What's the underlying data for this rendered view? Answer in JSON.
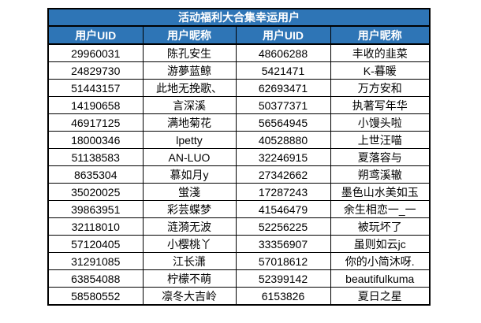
{
  "title": "活动福利大合集幸运用户",
  "colors": {
    "header_bg": "#2E75B6",
    "header_text": "#FFFFFF",
    "body_text": "#000000",
    "border": "#000000",
    "page_bg": "#FFFFFF"
  },
  "table": {
    "headers": [
      "用户UID",
      "用户昵称",
      "用户UID",
      "用户昵称"
    ],
    "rows": [
      [
        "29960031",
        "陈孔安生",
        "48606288",
        "丰收的韭菜"
      ],
      [
        "24829730",
        "游夢蓝鲸",
        "5421471",
        "K-暮暖"
      ],
      [
        "51443157",
        "此地无挽歌、",
        "62693471",
        "万方安和"
      ],
      [
        "14190658",
        "言深溪",
        "50377371",
        "执著写年华"
      ],
      [
        "46917125",
        "满地菊花",
        "56564945",
        "小馒头啦"
      ],
      [
        "18000346",
        "lpetty",
        "40528880",
        "上世汪喵"
      ],
      [
        "51138583",
        "AN-LUO",
        "32246915",
        "夏落容与"
      ],
      [
        "8635304",
        "慕如月y",
        "27342662",
        "朔鸢溪辙"
      ],
      [
        "35020025",
        "蛍淺",
        "17287243",
        "墨色山水美如玉"
      ],
      [
        "39863951",
        "彩芸蝶梦",
        "41546479",
        "余生相恋一_一"
      ],
      [
        "32118010",
        "涟漪无波",
        "52256225",
        "被玩坏了"
      ],
      [
        "57120405",
        "小樱桃丫",
        "33356907",
        "虽则如云jc"
      ],
      [
        "31291085",
        "江长潇",
        "57018612",
        "你的小简沐呀."
      ],
      [
        "63854088",
        "柠檬不萌",
        "52399142",
        "beautifulkuma"
      ],
      [
        "58580552",
        "凛冬大吉岭",
        "6153826",
        "夏日之星"
      ]
    ]
  }
}
